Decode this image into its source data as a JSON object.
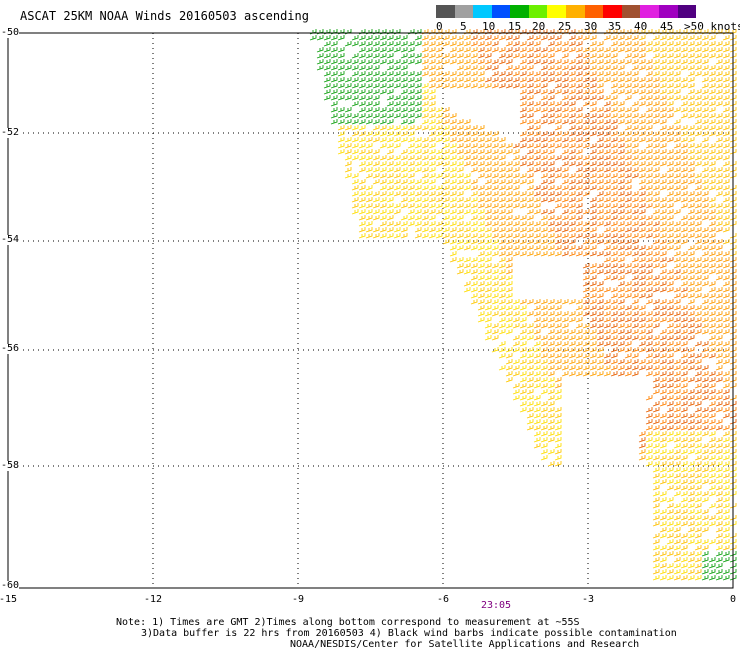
{
  "title": "ASCAT 25KM NOAA Winds 20160503 ascending",
  "legend": {
    "colors": [
      "#555555",
      "#a0a0a0",
      "#00c8ff",
      "#0050ff",
      "#00b000",
      "#6cf000",
      "#ffff00",
      "#ffb000",
      "#ff6000",
      "#ff0000",
      "#a05030",
      "#e020e0",
      "#a000c0",
      "#500080"
    ],
    "labels": [
      "0",
      "5",
      "10",
      "15",
      "20",
      "25",
      "30",
      "35",
      "40",
      "45",
      ">50 knots"
    ]
  },
  "axes": {
    "y_labels": [
      "-50",
      "-52",
      "-54",
      "-56",
      "-58",
      "-60"
    ],
    "x_labels": [
      "-15",
      "-12",
      "-9",
      "-6",
      "-3",
      "0"
    ]
  },
  "time_label": "23:05",
  "notes": [
    "Note: 1) Times are GMT 2)Times along bottom correspond to measurement at ~55S",
    "3)Data buffer is 22 hrs from 20160503 4) Black wind barbs indicate possible contamination",
    "NOAA/NESDIS/Center for Satellite Applications and Research"
  ]
}
